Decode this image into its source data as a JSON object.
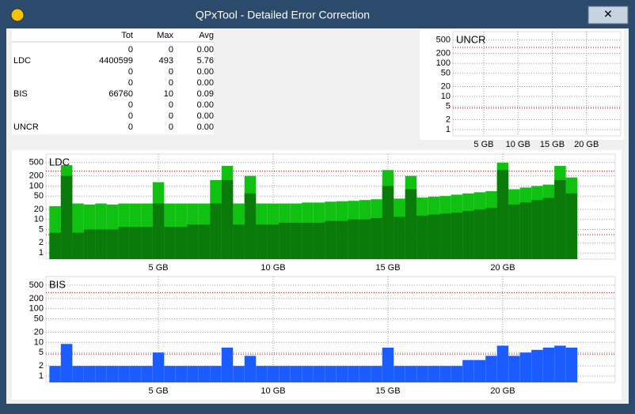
{
  "window": {
    "title": "QPxTool - Detailed Error Correction"
  },
  "table": {
    "headers": [
      "Tot",
      "Max",
      "Avg"
    ],
    "rows": [
      {
        "cells": [
          "0",
          "0",
          "0.00"
        ]
      },
      {
        "label": "LDC",
        "cells": [
          "4400599",
          "493",
          "5.76"
        ]
      },
      {
        "cells": [
          "0",
          "0",
          "0.00"
        ]
      },
      {
        "cells": [
          "0",
          "0",
          "0.00"
        ]
      },
      {
        "label": "BIS",
        "cells": [
          "66760",
          "10",
          "0.09"
        ]
      },
      {
        "cells": [
          "0",
          "0",
          "0.00"
        ]
      },
      {
        "cells": [
          "0",
          "0",
          "0.00"
        ]
      },
      {
        "label": "UNCR",
        "cells": [
          "0",
          "0",
          "0.00"
        ]
      }
    ]
  },
  "chart_data": [
    {
      "type": "bar",
      "title": "UNCR",
      "log_y": true,
      "grid": true,
      "xlim": [
        0.5,
        25
      ],
      "ylim": [
        0.65,
        900
      ],
      "xticks": [
        {
          "value": 5,
          "label": "5 GB"
        },
        {
          "value": 10,
          "label": "10 GB"
        },
        {
          "value": 15,
          "label": "15 GB"
        },
        {
          "value": 20,
          "label": "20 GB"
        }
      ],
      "yticks": [
        1,
        2,
        5,
        10,
        20,
        50,
        100,
        200,
        500
      ],
      "limits": [
        300,
        4.5
      ],
      "x": [],
      "series": []
    },
    {
      "type": "bar",
      "title": "LDC",
      "log_y": true,
      "grid": true,
      "xlim": [
        0.1,
        24.9
      ],
      "ylim": [
        0.65,
        900
      ],
      "xticks": [
        {
          "value": 5,
          "label": "5 GB"
        },
        {
          "value": 10,
          "label": "10 GB"
        },
        {
          "value": 15,
          "label": "15 GB"
        },
        {
          "value": 20,
          "label": "20 GB"
        }
      ],
      "yticks": [
        1,
        2,
        5,
        10,
        20,
        50,
        100,
        200,
        500
      ],
      "limits": [
        280,
        3.5
      ],
      "x": [
        0.5,
        1,
        1.5,
        2,
        2.5,
        3,
        3.5,
        4,
        4.5,
        5,
        5.5,
        6,
        6.5,
        7,
        7.5,
        8,
        8.5,
        9,
        9.5,
        10,
        10.5,
        11,
        11.5,
        12,
        12.5,
        13,
        13.5,
        14,
        14.5,
        15,
        15.5,
        16,
        16.5,
        17,
        17.5,
        18,
        18.5,
        19,
        19.5,
        20,
        20.5,
        21,
        21.5,
        22,
        22.5,
        23
      ],
      "series": [
        {
          "color": "#11c111",
          "values": [
            25,
            420,
            30,
            28,
            30,
            28,
            30,
            30,
            30,
            130,
            30,
            30,
            30,
            30,
            150,
            400,
            30,
            200,
            30,
            30,
            30,
            30,
            32,
            32,
            34,
            35,
            36,
            38,
            40,
            300,
            42,
            200,
            45,
            48,
            50,
            55,
            60,
            65,
            70,
            500,
            80,
            90,
            100,
            110,
            400,
            180
          ]
        },
        {
          "color": "#0a7a0a",
          "values": [
            4,
            200,
            4,
            5,
            5,
            5,
            6,
            6,
            6,
            30,
            6,
            6,
            7,
            7,
            30,
            150,
            7,
            60,
            7,
            7,
            8,
            8,
            8,
            8,
            9,
            9,
            10,
            10,
            11,
            100,
            12,
            80,
            13,
            14,
            15,
            16,
            18,
            20,
            22,
            300,
            28,
            32,
            38,
            44,
            150,
            60
          ]
        }
      ]
    },
    {
      "type": "bar",
      "title": "BIS",
      "log_y": true,
      "grid": true,
      "xlim": [
        0.1,
        24.9
      ],
      "ylim": [
        0.65,
        900
      ],
      "xticks": [
        {
          "value": 5,
          "label": "5 GB"
        },
        {
          "value": 10,
          "label": "10 GB"
        },
        {
          "value": 15,
          "label": "15 GB"
        },
        {
          "value": 20,
          "label": "20 GB"
        }
      ],
      "yticks": [
        1,
        2,
        5,
        10,
        20,
        50,
        100,
        200,
        500
      ],
      "limits": [
        300,
        4.5
      ],
      "x": [
        0.5,
        1,
        1.5,
        2,
        2.5,
        3,
        3.5,
        4,
        4.5,
        5,
        5.5,
        6,
        6.5,
        7,
        7.5,
        8,
        8.5,
        9,
        9.5,
        10,
        10.5,
        11,
        11.5,
        12,
        12.5,
        13,
        13.5,
        14,
        14.5,
        15,
        15.5,
        16,
        16.5,
        17,
        17.5,
        18,
        18.5,
        19,
        19.5,
        20,
        20.5,
        21,
        21.5,
        22,
        22.5,
        23
      ],
      "series": [
        {
          "color": "#1a5cff",
          "values": [
            2,
            9,
            2,
            2,
            2,
            2,
            2,
            2,
            2,
            5,
            2,
            2,
            2,
            2,
            2,
            7,
            2,
            4,
            2,
            2,
            2,
            2,
            2,
            2,
            2,
            2,
            2,
            2,
            2,
            7,
            2,
            2,
            2,
            2,
            2,
            2,
            3,
            3,
            4,
            8,
            4,
            5,
            6,
            7,
            8,
            7
          ]
        }
      ]
    }
  ]
}
